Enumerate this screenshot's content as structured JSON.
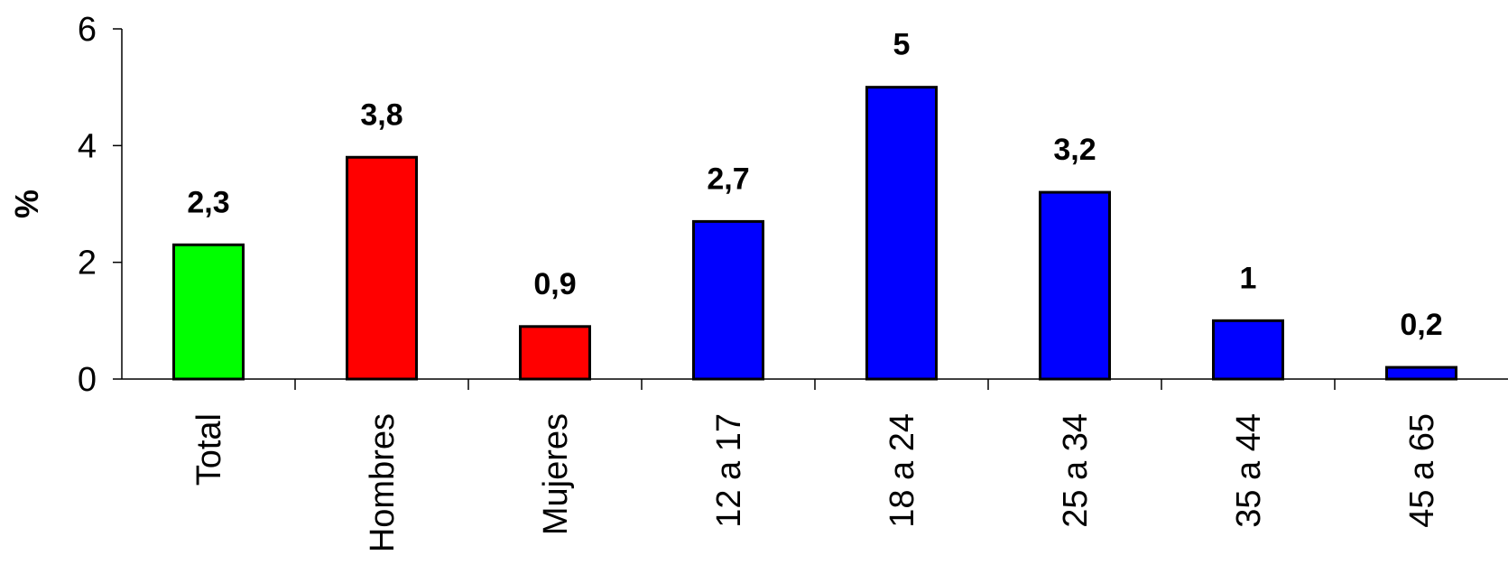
{
  "chart_data": {
    "type": "bar",
    "title": "",
    "xlabel": "",
    "ylabel": "%",
    "ylim": [
      0,
      6
    ],
    "yticks": [
      0,
      2,
      4,
      6
    ],
    "grid": false,
    "legend": "none",
    "categories": [
      "Total",
      "Hombres",
      "Mujeres",
      "12 a 17",
      "18 a 24",
      "25 a 34",
      "35 a 44",
      "45 a 65"
    ],
    "values": [
      2.3,
      3.8,
      0.9,
      2.7,
      5,
      3.2,
      1,
      0.2
    ],
    "data_labels": [
      "2,3",
      "3,8",
      "0,9",
      "2,7",
      "5",
      "3,2",
      "1",
      "0,2"
    ],
    "colors": [
      "#00FF00",
      "#FF0000",
      "#FF0000",
      "#0000FF",
      "#0000FF",
      "#0000FF",
      "#0000FF",
      "#0000FF"
    ]
  }
}
